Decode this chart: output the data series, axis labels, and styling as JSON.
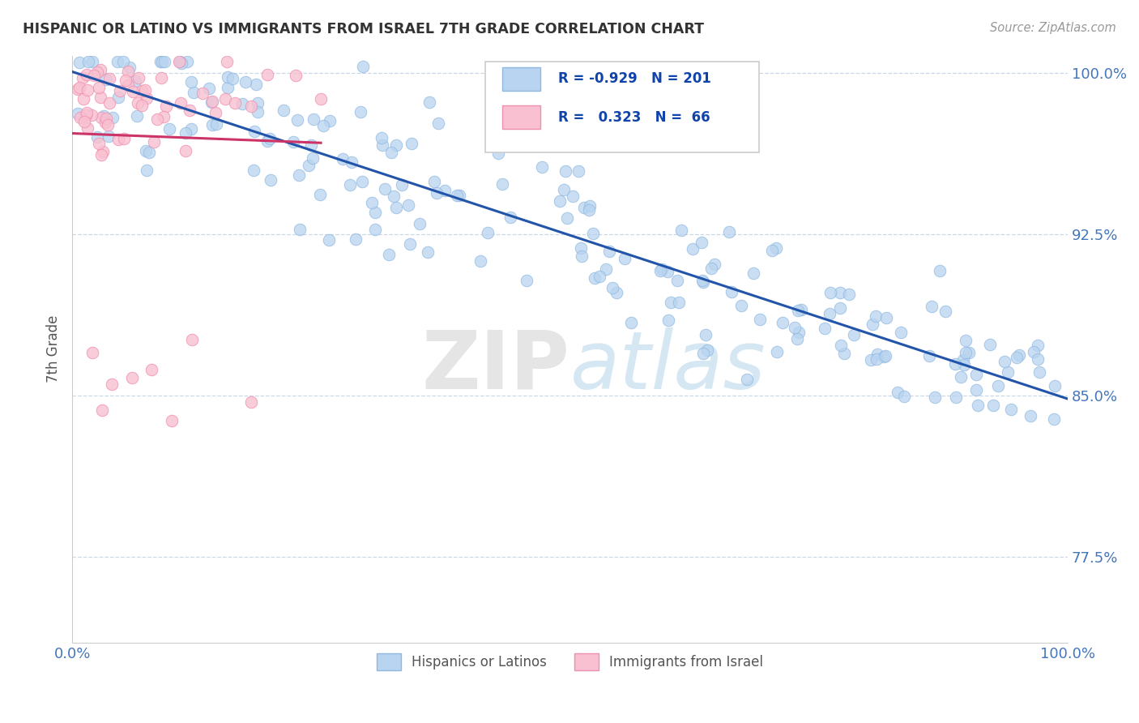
{
  "title": "HISPANIC OR LATINO VS IMMIGRANTS FROM ISRAEL 7TH GRADE CORRELATION CHART",
  "source_text": "Source: ZipAtlas.com",
  "ylabel": "7th Grade",
  "watermark_zip": "ZIP",
  "watermark_atlas": "atlas",
  "xmin": 0.0,
  "xmax": 1.0,
  "ymin": 0.735,
  "ymax": 1.008,
  "yticks": [
    0.775,
    0.85,
    0.925,
    1.0
  ],
  "ytick_labels": [
    "77.5%",
    "85.0%",
    "92.5%",
    "100.0%"
  ],
  "xticks": [
    0.0,
    1.0
  ],
  "xtick_labels": [
    "0.0%",
    "100.0%"
  ],
  "blue_R": -0.929,
  "blue_N": 201,
  "pink_R": 0.323,
  "pink_N": 66,
  "blue_color": "#b8d4f0",
  "blue_edge": "#90b8e0",
  "pink_color": "#f8c0d0",
  "pink_edge": "#f090b0",
  "blue_line_color": "#2255aa",
  "pink_line_color": "#cc3366",
  "legend_label_blue": "Hispanics or Latinos",
  "legend_label_pink": "Immigrants from Israel",
  "background_color": "#ffffff",
  "grid_color": "#c8d8e8",
  "title_color": "#333333",
  "axis_label_color": "#555555",
  "tick_label_color": "#4477bb",
  "blue_seed": 42,
  "pink_seed": 99
}
